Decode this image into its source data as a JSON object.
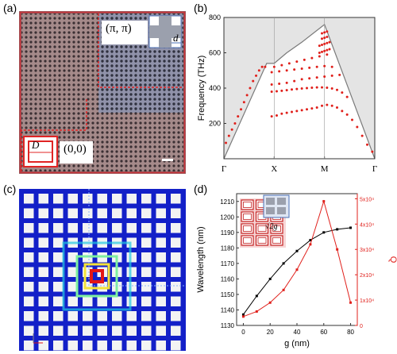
{
  "panels": {
    "a": {
      "label": "(a)",
      "corner_pipi": "(π, π)",
      "corner_00": "(0,0)",
      "dim_big": "D",
      "dim_small": "d"
    },
    "b": {
      "label": "(b)"
    },
    "c": {
      "label": "(c)"
    },
    "d": {
      "label": "(d)",
      "inset_label": "√2g"
    }
  },
  "chart_data": [
    {
      "type": "scatter",
      "panel": "b",
      "ylabel": "Frequency (THz)",
      "ylim": [
        0,
        800
      ],
      "yticks": [
        200,
        400,
        600,
        800
      ],
      "xticks": [
        "Γ",
        "X",
        "M",
        "Γ"
      ],
      "xlim": [
        0,
        3
      ],
      "grid": false,
      "light_line": [
        [
          0,
          0
        ],
        [
          0.85,
          540
        ],
        [
          1.0,
          540
        ],
        [
          1.25,
          600
        ],
        [
          1.55,
          660
        ],
        [
          2.0,
          760
        ],
        [
          2.5,
          380
        ],
        [
          3.0,
          0
        ]
      ],
      "series": [
        {
          "color": "#e0201b",
          "x": [
            0.04,
            0.1,
            0.16,
            0.22,
            0.28,
            0.34,
            0.4,
            0.46,
            0.52,
            0.58,
            0.64,
            0.7,
            0.76,
            0.82,
            0.95,
            1.05,
            1.15,
            1.25,
            1.35,
            1.45,
            1.55,
            1.65,
            1.75,
            1.85,
            1.95,
            2.05,
            2.15,
            2.25,
            2.35,
            2.45,
            2.55,
            2.65,
            2.75,
            2.85,
            2.95,
            0.95,
            1.05,
            1.15,
            1.25,
            1.35,
            1.45,
            1.55,
            1.65,
            1.75,
            1.85,
            1.95,
            2.05,
            2.15,
            2.25,
            2.35,
            2.45,
            0.95,
            1.1,
            1.25,
            1.4,
            1.55,
            1.7,
            1.85,
            2.0,
            2.15,
            2.3,
            0.95,
            1.1,
            1.25,
            1.4,
            1.55,
            1.7,
            1.85,
            2.0,
            2.15,
            1.0,
            1.15,
            1.3,
            1.45,
            1.6,
            1.75,
            1.9,
            2.05,
            1.9,
            1.95,
            2.0,
            2.05,
            2.1,
            1.9,
            1.95,
            2.0,
            2.05,
            2.1,
            1.95,
            2.0,
            2.05,
            1.95,
            2.0,
            2.05
          ],
          "y": [
            90,
            130,
            165,
            200,
            240,
            280,
            320,
            360,
            400,
            440,
            470,
            500,
            520,
            520,
            240,
            245,
            255,
            260,
            265,
            270,
            275,
            280,
            285,
            290,
            300,
            305,
            300,
            290,
            270,
            250,
            220,
            180,
            130,
            80,
            40,
            380,
            382,
            385,
            388,
            392,
            395,
            398,
            400,
            402,
            404,
            404,
            402,
            398,
            390,
            375,
            350,
            420,
            425,
            430,
            440,
            450,
            455,
            460,
            465,
            470,
            475,
            490,
            495,
            500,
            505,
            510,
            515,
            520,
            525,
            520,
            520,
            530,
            540,
            550,
            560,
            570,
            580,
            590,
            600,
            605,
            610,
            615,
            620,
            640,
            645,
            650,
            655,
            660,
            680,
            685,
            690,
            710,
            715,
            720
          ]
        }
      ]
    },
    {
      "type": "line",
      "panel": "d",
      "xlabel": "g (nm)",
      "ylabel": "Wavelength (nm)",
      "y2label": "Q",
      "x": [
        0,
        10,
        20,
        30,
        40,
        50,
        60,
        70,
        80
      ],
      "xlim": [
        -5,
        85
      ],
      "xticks": [
        0,
        20,
        40,
        60,
        80
      ],
      "ylim": [
        1130,
        1215
      ],
      "yticks": [
        1130,
        1140,
        1150,
        1160,
        1170,
        1180,
        1190,
        1200,
        1210
      ],
      "y2lim": [
        0,
        52000
      ],
      "y2ticks": [
        "0",
        "1x10⁴",
        "2x10⁴",
        "3x10⁴",
        "4x10⁴",
        "5x10⁴"
      ],
      "series": [
        {
          "axis": "left",
          "color": "#000000",
          "values": [
            1137,
            1149,
            1160,
            1170,
            1178,
            1185,
            1190,
            1192,
            1193
          ]
        },
        {
          "axis": "right",
          "color": "#e0201b",
          "values": [
            3500,
            5500,
            9000,
            14000,
            22000,
            32000,
            49000,
            30000,
            9000
          ]
        }
      ]
    }
  ]
}
